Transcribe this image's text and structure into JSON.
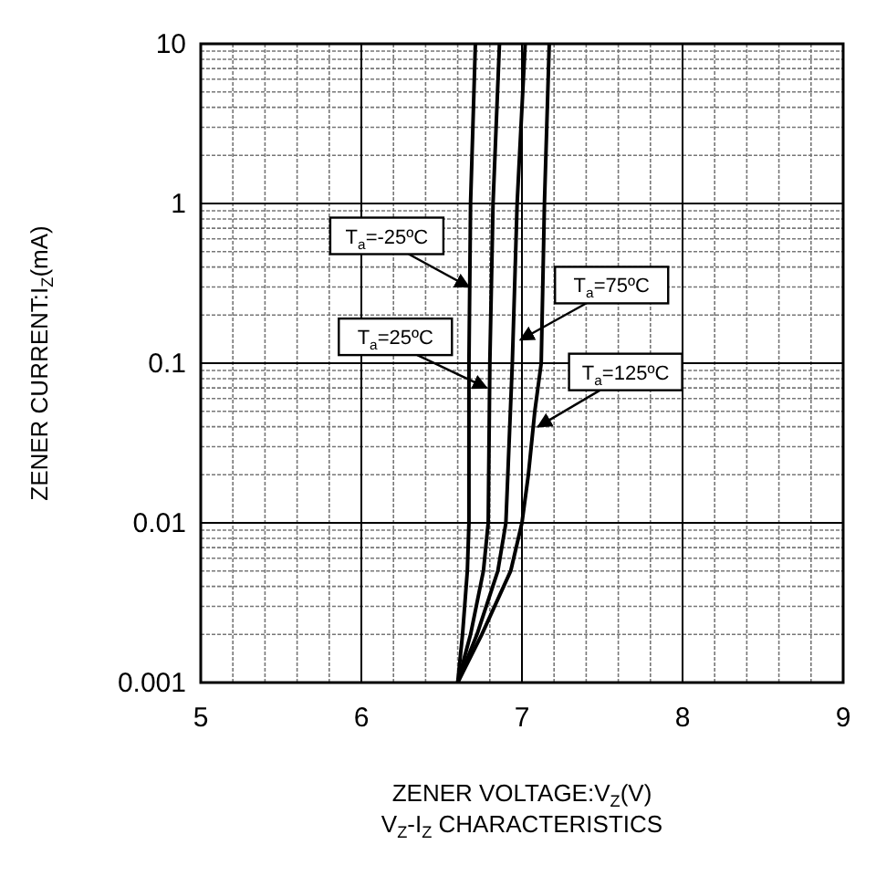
{
  "chart_data": {
    "type": "line",
    "xlabel": "ZENER VOLTAGE:V$_{Z}$(V)",
    "ylabel": "ZENER CURRENT:I$_{Z}$(mA)",
    "log": "y",
    "grid": true,
    "marker": "none",
    "line_style": "solid",
    "xlim": [
      5,
      9
    ],
    "xticks": [
      5,
      6,
      7,
      8,
      9
    ],
    "ylim": [
      0.001,
      10
    ],
    "yticks": [
      0.001,
      0.01,
      0.1,
      1,
      10
    ],
    "series": [
      {
        "color": "#000000",
        "x": [
          6.6,
          6.63,
          6.66,
          6.67,
          6.67,
          6.68,
          6.71
        ],
        "values": [
          0.001,
          0.002,
          0.005,
          0.01,
          0.1,
          1,
          10
        ]
      },
      {
        "color": "#000000",
        "x": [
          6.6,
          6.68,
          6.76,
          6.79,
          6.8,
          6.82,
          6.86
        ],
        "values": [
          0.001,
          0.002,
          0.005,
          0.01,
          0.1,
          1,
          10
        ]
      },
      {
        "color": "#000000",
        "x": [
          6.6,
          6.72,
          6.85,
          6.9,
          6.94,
          6.97,
          7.02
        ],
        "values": [
          0.001,
          0.002,
          0.005,
          0.01,
          0.1,
          1,
          10
        ]
      },
      {
        "color": "#000000",
        "x": [
          6.6,
          6.75,
          6.93,
          7.0,
          7.04,
          7.08,
          7.12,
          7.14,
          7.17
        ],
        "values": [
          0.001,
          0.002,
          0.005,
          0.01,
          0.02,
          0.05,
          0.1,
          1,
          10
        ]
      }
    ],
    "annotations": [
      {
        "text": "T$_{a}$=-25ºC",
        "x": 6.67,
        "y": 0.3
      },
      {
        "text": "T$_{a}$=75ºC",
        "x": 6.99,
        "y": 0.14
      },
      {
        "text": "T$_{a}$=25ºC",
        "x": 6.78,
        "y": 0.07
      },
      {
        "text": "T$_{a}$=125ºC",
        "x": 7.1,
        "y": 0.04
      },
      "V$_{Z}$-I$_{Z}$ CHARACTERISTICS"
    ]
  }
}
